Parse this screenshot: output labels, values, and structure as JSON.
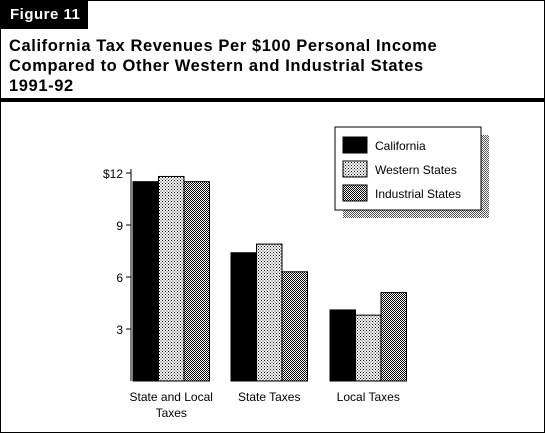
{
  "figure_label": "Figure 11",
  "title_lines": [
    "California Tax Revenues Per $100 Personal Income",
    "Compared to Other Western and Industrial States",
    "1991-92"
  ],
  "colors": {
    "California": "#000000",
    "Western States": "#d8d8d8",
    "Industrial States": "#9a9a9a"
  },
  "chart_data": {
    "type": "bar",
    "title": "California Tax Revenues Per $100 Personal Income Compared to Other Western and Industrial States 1991-92",
    "categories": [
      "State and Local Taxes",
      "State Taxes",
      "Local Taxes"
    ],
    "category_label_lines": [
      [
        "State and Local",
        "Taxes"
      ],
      [
        "State Taxes"
      ],
      [
        "Local Taxes"
      ]
    ],
    "series": [
      {
        "name": "California",
        "values": [
          11.5,
          7.4,
          4.1
        ]
      },
      {
        "name": "Western States",
        "values": [
          11.8,
          7.9,
          3.8
        ]
      },
      {
        "name": "Industrial States",
        "values": [
          11.5,
          6.3,
          5.1
        ]
      }
    ],
    "yticks": [
      "3",
      "6",
      "9",
      "$12"
    ],
    "ytick_values": [
      3,
      6,
      9,
      12
    ],
    "ylim": [
      0,
      12
    ],
    "legend_position": "top-right",
    "grid": false,
    "xlabel": "",
    "ylabel": ""
  }
}
